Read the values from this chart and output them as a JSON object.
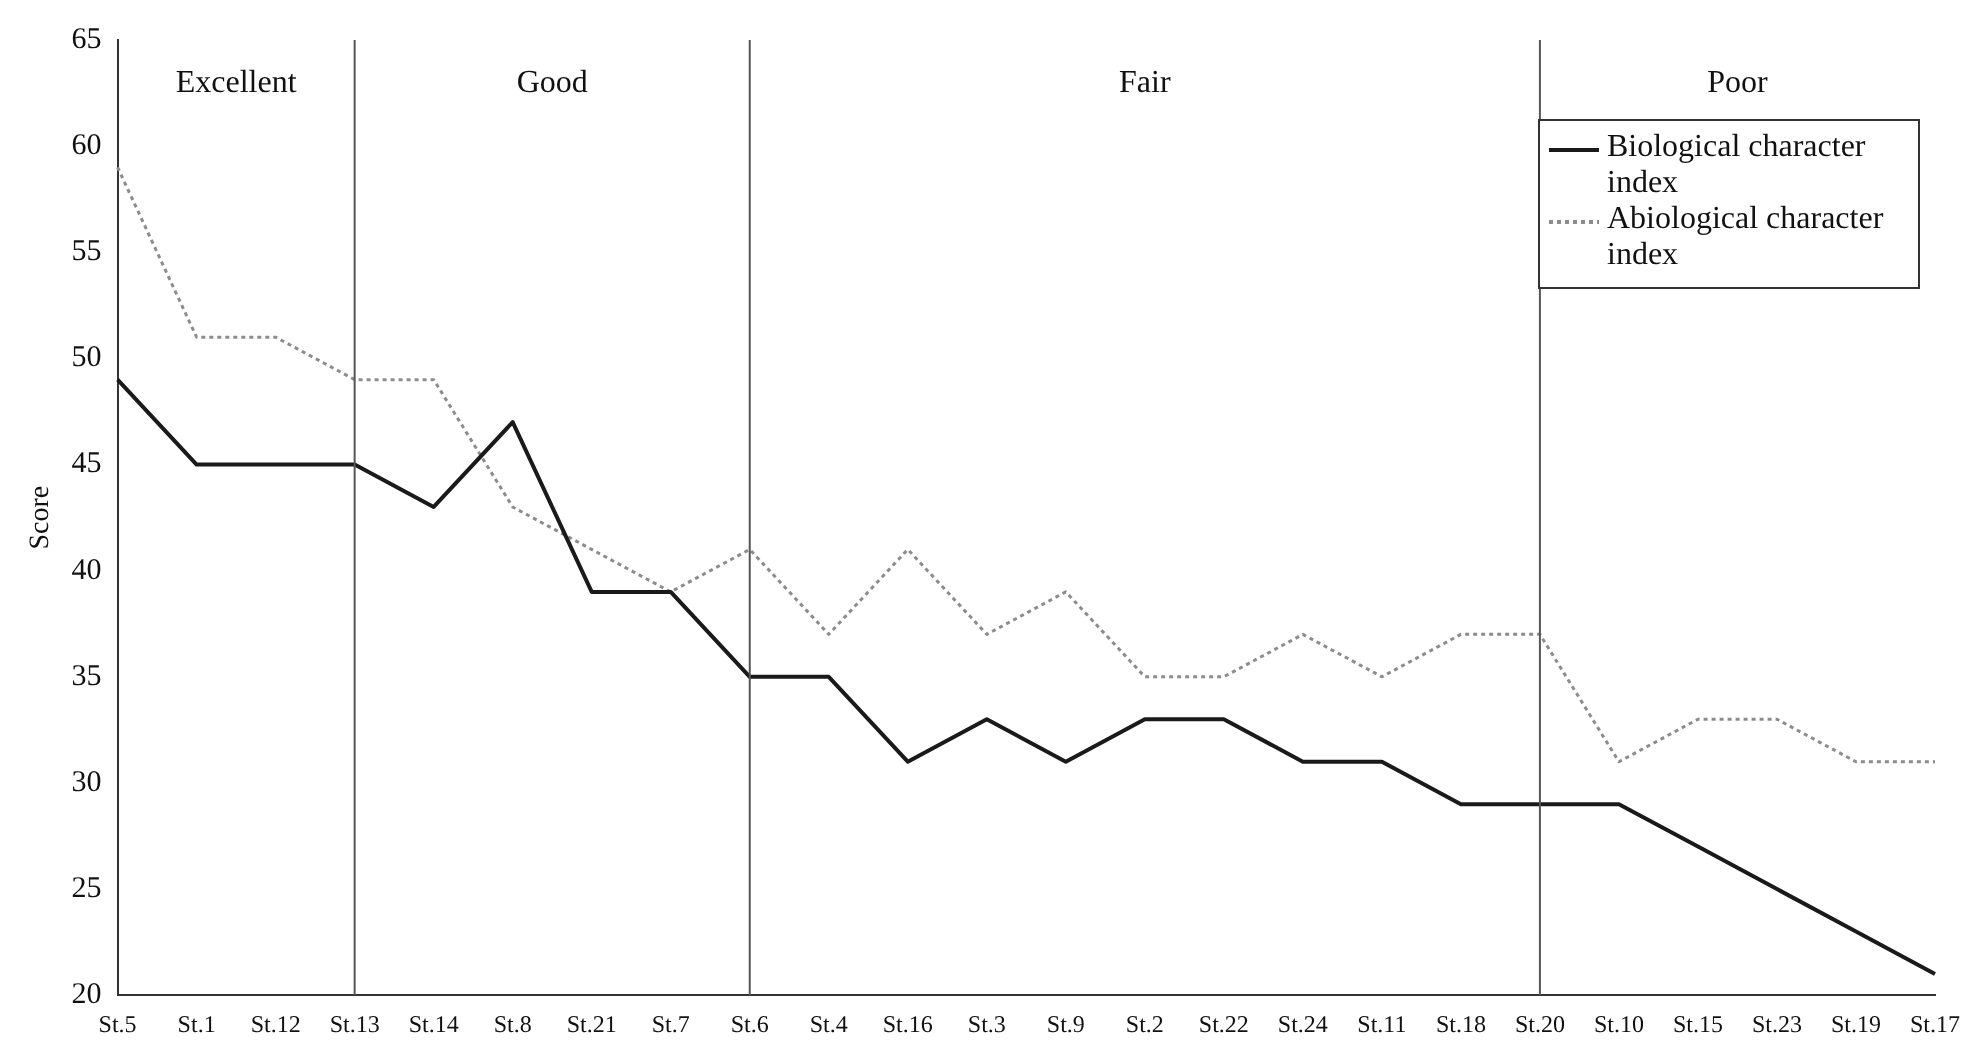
{
  "chart_data": {
    "type": "line",
    "ylabel": "Score",
    "categories": [
      "St.5",
      "St.1",
      "St.12",
      "St.13",
      "St.14",
      "St.8",
      "St.21",
      "St.7",
      "St.6",
      "St.4",
      "St.16",
      "St.3",
      "St.9",
      "St.2",
      "St.22",
      "St.24",
      "St.11",
      "St.18",
      "St.20",
      "St.10",
      "St.15",
      "St.23",
      "St.19",
      "St.17"
    ],
    "series": [
      {
        "name": "Biological character index",
        "color": "#1a1a1a",
        "line_style": "solid",
        "values": [
          49,
          45,
          45,
          45,
          43,
          47,
          39,
          39,
          35,
          35,
          31,
          33,
          31,
          33,
          33,
          31,
          31,
          29,
          29,
          29,
          27,
          25,
          23,
          21
        ]
      },
      {
        "name": "Abiological character index",
        "color": "#8c8c8c",
        "line_style": "dotted",
        "values": [
          59,
          51,
          51,
          49,
          49,
          43,
          41,
          39,
          41,
          37,
          41,
          37,
          39,
          35,
          35,
          37,
          35,
          37,
          37,
          31,
          33,
          33,
          31,
          31
        ]
      }
    ],
    "ylim": [
      20,
      65
    ],
    "yticks": [
      20,
      25,
      30,
      35,
      40,
      45,
      50,
      55,
      60,
      65
    ],
    "grid": false,
    "legend": "top right",
    "marker": "none",
    "ref_lines": [
      {
        "axis": "x",
        "value": "St.13",
        "color": "#555555"
      },
      {
        "axis": "x",
        "value": "St.6",
        "color": "#555555"
      },
      {
        "axis": "x",
        "value": "St.20",
        "color": "#555555"
      }
    ],
    "annotations": [
      "Excellent",
      "Good",
      "Fair",
      "Poor"
    ]
  }
}
